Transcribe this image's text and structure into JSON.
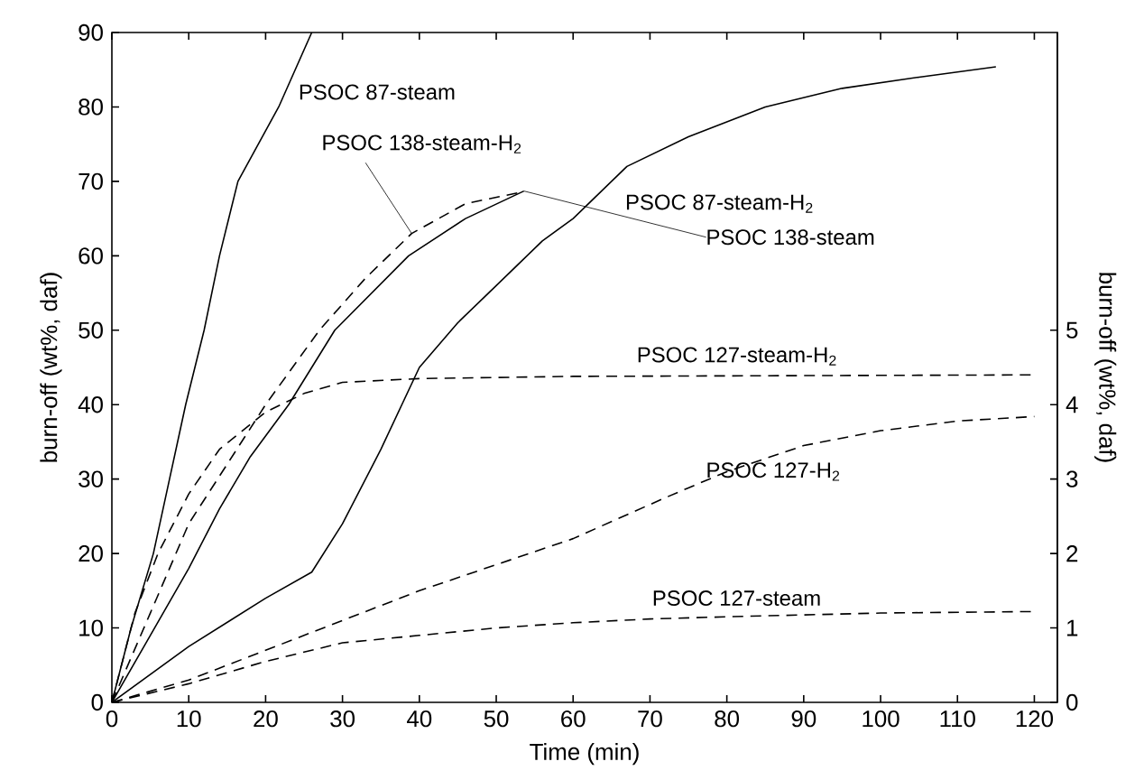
{
  "chart_data": {
    "type": "line",
    "xlabel": "Time (min)",
    "ylabel": "burn-off (wt%, daf)",
    "y2label": "burn-off (wt%, daf)",
    "xlim": [
      0,
      123
    ],
    "xticks": [
      0,
      10,
      20,
      30,
      40,
      50,
      60,
      70,
      80,
      90,
      100,
      110,
      120
    ],
    "ylim": [
      0,
      90
    ],
    "yticks": [
      0,
      10,
      20,
      30,
      40,
      50,
      60,
      70,
      80,
      90
    ],
    "y2lim": [
      0,
      9
    ],
    "y2ticks": [
      0,
      1,
      2,
      3,
      4,
      5
    ],
    "legend": false,
    "series": [
      {
        "name": "PSOC 87-steam",
        "color": "#000000",
        "line_style": "solid",
        "x": [
          0,
          2.5,
          5.4,
          7.5,
          9.6,
          12,
          14,
          16.4,
          21.7,
          26
        ],
        "values": [
          0,
          10,
          20,
          30,
          40,
          50,
          60,
          70,
          80,
          90
        ]
      },
      {
        "name": "PSOC 138-steam-H$_{2}$",
        "color": "#000000",
        "line_style": "dashed",
        "x": [
          0,
          5,
          10,
          15,
          20,
          27,
          33,
          39,
          46,
          53
        ],
        "values": [
          0,
          12,
          24,
          32,
          40,
          50,
          57,
          63,
          67,
          68.5
        ]
      },
      {
        "name": "PSOC 138-steam",
        "color": "#000000",
        "line_style": "solid",
        "x": [
          0,
          5,
          10,
          14,
          18,
          23,
          29,
          38.6,
          46,
          53.6
        ],
        "values": [
          0,
          9,
          18,
          26,
          33,
          40,
          50,
          60,
          65,
          68.7
        ]
      },
      {
        "name": "PSOC 87-steam-H$_{2}$",
        "color": "#000000",
        "line_style": "solid",
        "x": [
          0,
          10,
          20,
          26,
          30,
          35,
          40,
          45,
          50,
          56,
          60,
          67,
          75,
          85,
          95,
          105,
          115
        ],
        "values": [
          0,
          7.5,
          14,
          17.5,
          24,
          34,
          45,
          51,
          56,
          62,
          65,
          72,
          76,
          80,
          82.5,
          84,
          85.4
        ]
      },
      {
        "name": "PSOC 127-steam-H$_{2}$",
        "color": "#000000",
        "line_style": "dashed",
        "axis": "y2",
        "x": [
          0,
          3,
          6,
          10,
          14,
          20,
          25,
          30,
          40,
          60,
          120
        ],
        "values": [
          0,
          1.2,
          2.0,
          2.8,
          3.4,
          3.9,
          4.15,
          4.3,
          4.35,
          4.38,
          4.4
        ]
      },
      {
        "name": "PSOC 127-H$_{2}$",
        "color": "#000000",
        "line_style": "dashed",
        "axis": "y2",
        "x": [
          0,
          10,
          20,
          30,
          40,
          50,
          60,
          72,
          80,
          90,
          100,
          110,
          120
        ],
        "values": [
          0,
          0.3,
          0.7,
          1.1,
          1.5,
          1.85,
          2.2,
          2.75,
          3.1,
          3.45,
          3.65,
          3.78,
          3.84
        ]
      },
      {
        "name": "PSOC 127-steam",
        "color": "#000000",
        "line_style": "dashed",
        "axis": "y2",
        "x": [
          0,
          10,
          20,
          30,
          40,
          50,
          60,
          70,
          80,
          100,
          120
        ],
        "values": [
          0,
          0.25,
          0.55,
          0.8,
          0.9,
          1.0,
          1.07,
          1.12,
          1.15,
          1.2,
          1.22
        ]
      }
    ]
  }
}
